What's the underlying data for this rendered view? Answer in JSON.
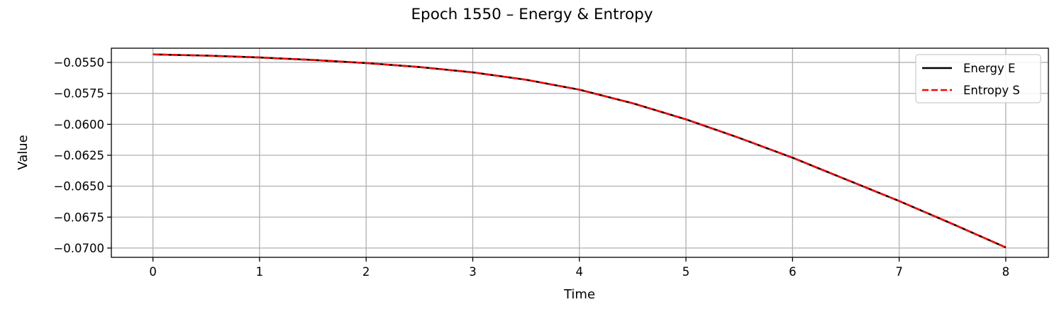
{
  "chart_data": {
    "type": "line",
    "title": "Epoch 1550 – Energy & Entropy",
    "xlabel": "Time",
    "ylabel": "Value",
    "xlim": [
      -0.39,
      8.4
    ],
    "ylim": [
      -0.07075,
      -0.05385
    ],
    "xticks": [
      0,
      1,
      2,
      3,
      4,
      5,
      6,
      7,
      8
    ],
    "xtick_labels": [
      "0",
      "1",
      "2",
      "3",
      "4",
      "5",
      "6",
      "7",
      "8"
    ],
    "yticks": [
      -0.055,
      -0.0575,
      -0.06,
      -0.0625,
      -0.065,
      -0.0675,
      -0.07
    ],
    "ytick_labels": [
      "−0.0550",
      "−0.0575",
      "−0.0600",
      "−0.0625",
      "−0.0650",
      "−0.0675",
      "−0.0700"
    ],
    "grid": true,
    "legend_position": "top-right",
    "x": [
      0,
      0.5,
      1,
      1.5,
      2,
      2.5,
      3,
      3.5,
      4,
      4.5,
      5,
      5.5,
      6,
      6.5,
      7,
      7.5,
      8
    ],
    "series": [
      {
        "name": "Energy E",
        "color": "#000000",
        "dash": "solid",
        "values": [
          -0.05435,
          -0.05445,
          -0.0546,
          -0.0548,
          -0.05505,
          -0.05537,
          -0.0558,
          -0.0564,
          -0.0572,
          -0.0583,
          -0.0596,
          -0.0611,
          -0.0627,
          -0.06445,
          -0.0662,
          -0.06805,
          -0.06995
        ]
      },
      {
        "name": "Entropy S",
        "color": "#ff0000",
        "dash": "dashed",
        "values": [
          -0.05435,
          -0.05445,
          -0.0546,
          -0.0548,
          -0.05505,
          -0.05537,
          -0.0558,
          -0.0564,
          -0.0572,
          -0.0583,
          -0.0596,
          -0.0611,
          -0.0627,
          -0.06445,
          -0.0662,
          -0.06805,
          -0.06995
        ]
      }
    ]
  }
}
